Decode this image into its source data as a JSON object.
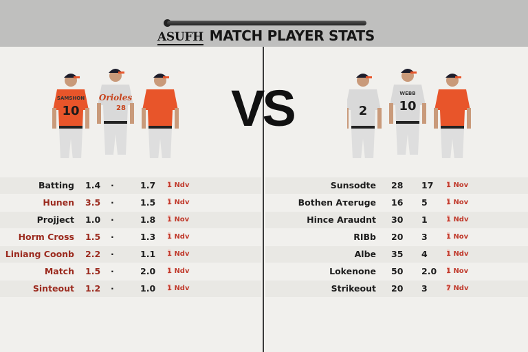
{
  "header": {
    "logo_text": "ASUFH",
    "title": "MATCH PLAYER STATS"
  },
  "vs_label": "VS",
  "colors": {
    "orange": "#e8552a",
    "header_bg": "#bfbfbe",
    "accent_red": "#9b2a1e"
  },
  "left_team": {
    "players": [
      {
        "jersey": "orange",
        "name_on_back": "SAMSHON",
        "number": "10"
      },
      {
        "jersey": "gray",
        "script": "Orioles",
        "number": "28"
      },
      {
        "jersey": "orange",
        "number": ""
      }
    ],
    "rows": [
      {
        "label": "Batting",
        "v1": "1.4",
        "sep": "·",
        "v2": "1.7",
        "date": "1 Ndv",
        "red": false
      },
      {
        "label": "Hunen",
        "v1": "3.5",
        "sep": "·",
        "v2": "1.5",
        "date": "1 Ndv",
        "red": true
      },
      {
        "label": "Projject",
        "v1": "1.0",
        "sep": "·",
        "v2": "1.8",
        "date": "1 Nov",
        "red": false
      },
      {
        "label": "Horm Cross",
        "v1": "1.5",
        "sep": "·",
        "v2": "1.3",
        "date": "1 Ndv",
        "red": true
      },
      {
        "label": "Liniang Coonb",
        "v1": "2.2",
        "sep": "·",
        "v2": "1.1",
        "date": "1 Ndv",
        "red": true
      },
      {
        "label": "Match",
        "v1": "1.5",
        "sep": "·",
        "v2": "2.0",
        "date": "1 Ndv",
        "red": true
      },
      {
        "label": "Sinteout",
        "v1": "1.2",
        "sep": "·",
        "v2": "1.0",
        "date": "1 Ndv",
        "red": true
      }
    ]
  },
  "right_team": {
    "players": [
      {
        "jersey": "gray",
        "number": "2"
      },
      {
        "jersey": "gray",
        "name_on_back": "WEBB",
        "number": "10"
      },
      {
        "jersey": "orange",
        "number": ""
      }
    ],
    "rows": [
      {
        "label": "Sunsodte",
        "v1": "28",
        "v2": "17",
        "date": "1 Nov"
      },
      {
        "label": "Bothen Aτeruge",
        "v1": "16",
        "v2": "5",
        "date": "1 Nov"
      },
      {
        "label": "Hince Araudnt",
        "v1": "30",
        "v2": "1",
        "date": "1 Ndv"
      },
      {
        "label": "RIBb",
        "v1": "20",
        "v2": "3",
        "date": "1 Nov"
      },
      {
        "label": "Albe",
        "v1": "35",
        "v2": "4",
        "date": "1 Ndv"
      },
      {
        "label": "Lokenone",
        "v1": "50",
        "v2": "2.0",
        "date": "1 Nov"
      },
      {
        "label": "Strikeout",
        "v1": "20",
        "v2": "3",
        "date": "7 Ndv"
      }
    ]
  }
}
